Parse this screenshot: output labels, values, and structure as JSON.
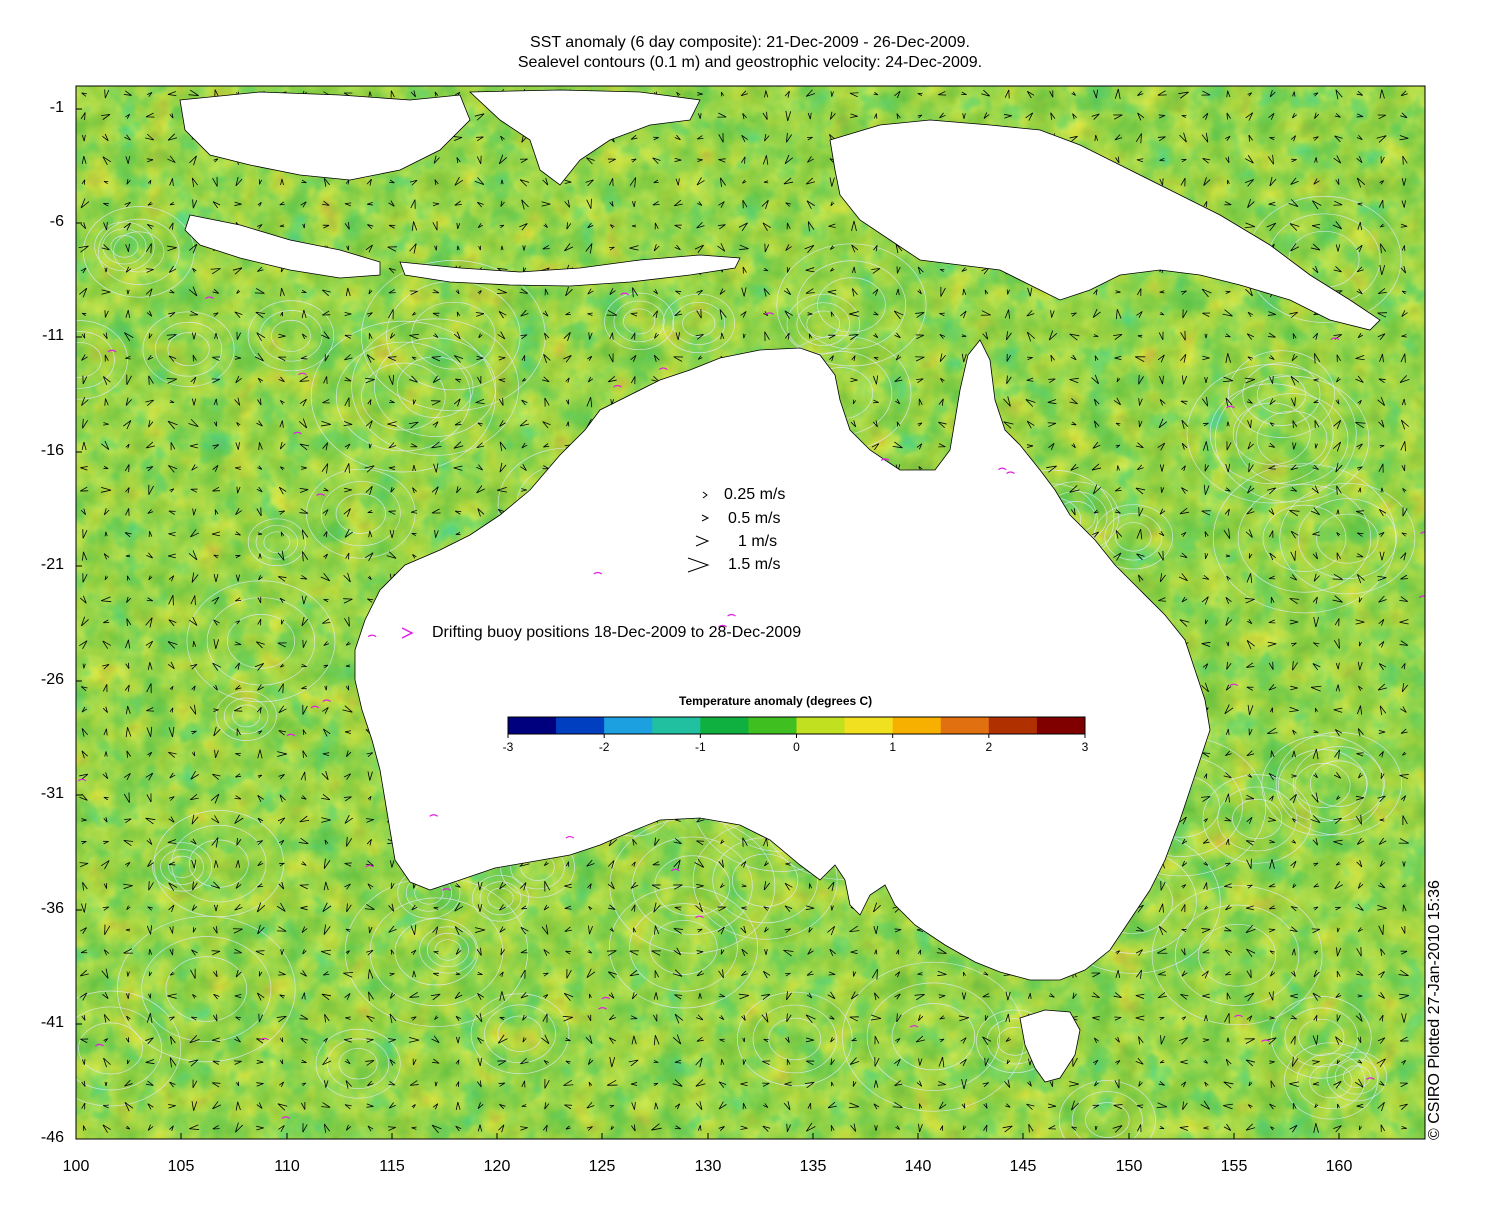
{
  "title_line1": "SST anomaly (6 day composite): 21-Dec-2009 - 26-Dec-2009.",
  "title_line2": "Sealevel contours (0.1 m) and geostrophic velocity: 24-Dec-2009.",
  "y_ticks": [
    "-1",
    "-6",
    "-11",
    "-16",
    "-21",
    "-26",
    "-31",
    "-36",
    "-41",
    "-46"
  ],
  "x_ticks": [
    "100",
    "105",
    "110",
    "115",
    "120",
    "125",
    "130",
    "135",
    "140",
    "145",
    "150",
    "155",
    "160"
  ],
  "velocity_legend": [
    {
      "label": "0.25 m/s",
      "speed": 0.25
    },
    {
      "label": "0.5 m/s",
      "speed": 0.5
    },
    {
      "label": "1 m/s",
      "speed": 1
    },
    {
      "label": "1.5 m/s",
      "speed": 1.5
    }
  ],
  "buoy_legend": {
    "label": "Drifting buoy positions 18-Dec-2009 to 28-Dec-2009",
    "color": "#e020e0"
  },
  "colorbar": {
    "label": "Temperature anomaly (degrees C)",
    "ticks": [
      "-3",
      "-2",
      "-1",
      "0",
      "1",
      "2",
      "3"
    ],
    "range": [
      -3,
      3
    ],
    "colors": [
      "#00007f",
      "#0040c0",
      "#1ca0e0",
      "#20c0a0",
      "#10b040",
      "#40c020",
      "#c0e020",
      "#f0e020",
      "#f8b000",
      "#e07010",
      "#b03000",
      "#800000"
    ]
  },
  "credit": "© CSIRO Plotted 27-Jan-2010 15:36",
  "map": {
    "lon_range": [
      100,
      164
    ],
    "lat_range": [
      -46,
      0
    ],
    "land_color": "#ffffff",
    "contour_color": "#e8e8ff"
  }
}
